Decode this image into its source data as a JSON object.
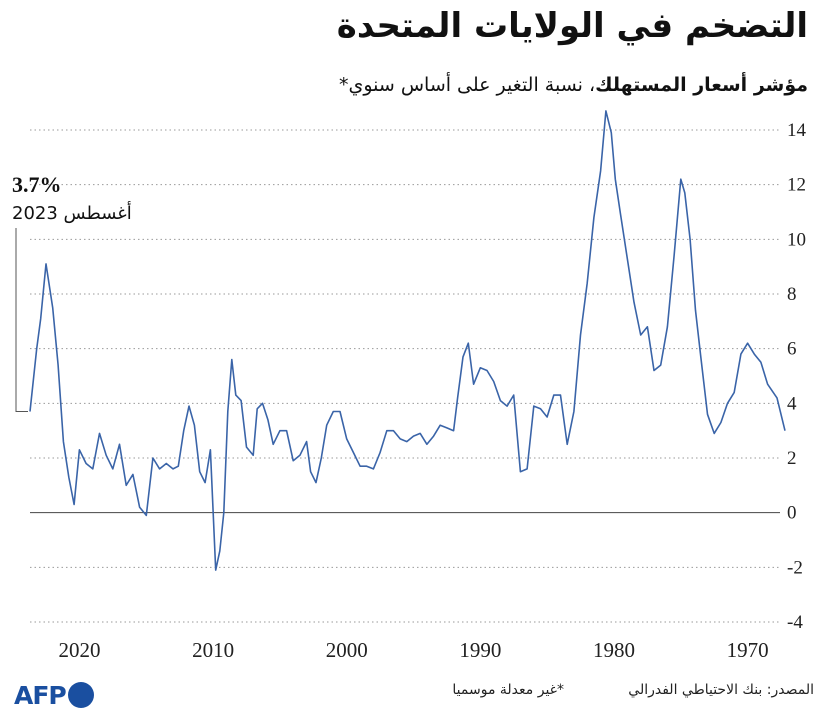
{
  "header": {
    "title": "التضخم في الولايات المتحدة",
    "subtitle_bold": "مؤشر أسعار المستهلك",
    "subtitle_rest": "، نسبة التغير على أساس سنوي*"
  },
  "annotation": {
    "value": "3.7%",
    "date": "أغسطس 2023"
  },
  "footer": {
    "source": "المصدر: بنك الاحتياطي الفدرالي",
    "note": "*غير معدلة موسميا",
    "logo": "AFP"
  },
  "colors": {
    "line": "#3a64a8",
    "grid": "#9a9a9a",
    "zero": "#444444",
    "logo": "#1a4fa0"
  },
  "chart_data": {
    "type": "line",
    "title": "التضخم في الولايات المتحدة",
    "x_axis": {
      "reversed": true,
      "xlim": [
        1967.2,
        2023.7
      ],
      "tick_labels": [
        "1970",
        "1980",
        "1990",
        "2000",
        "2010",
        "2020"
      ]
    },
    "y_axis": {
      "ylim": [
        -4,
        14
      ],
      "side": "right",
      "tick_labels": [
        "-4",
        "-2",
        "0",
        "2",
        "4",
        "6",
        "8",
        "10",
        "12",
        "14"
      ]
    },
    "grid": "horizontal-dotted",
    "series": [
      {
        "x": [
          1967.2,
          1967.8,
          1968.5,
          1969.0,
          1969.5,
          1970.0,
          1970.5,
          1971.0,
          1971.5,
          1972.0,
          1972.5,
          1973.0,
          1973.5,
          1973.9,
          1974.3,
          1974.7,
          1975.0,
          1975.5,
          1976.0,
          1976.5,
          1977.0,
          1977.5,
          1978.0,
          1978.5,
          1979.0,
          1979.5,
          1979.9,
          1980.2,
          1980.6,
          1981.0,
          1981.5,
          1982.0,
          1982.5,
          1983.0,
          1983.5,
          1984.0,
          1984.5,
          1985.0,
          1985.5,
          1986.0,
          1986.5,
          1987.0,
          1987.5,
          1988.0,
          1988.5,
          1989.0,
          1989.5,
          1990.0,
          1990.5,
          1990.9,
          1991.3,
          1991.7,
          1992.0,
          1992.5,
          1993.0,
          1993.5,
          1994.0,
          1994.5,
          1995.0,
          1995.5,
          1996.0,
          1996.5,
          1997.0,
          1997.5,
          1998.0,
          1998.5,
          1999.0,
          1999.5,
          2000.0,
          2000.5,
          2001.0,
          2001.5,
          2001.9,
          2002.3,
          2002.7,
          2003.0,
          2003.5,
          2004.0,
          2004.5,
          2005.0,
          2005.5,
          2005.9,
          2006.3,
          2006.7,
          2007.0,
          2007.5,
          2007.9,
          2008.3,
          2008.6,
          2008.9,
          2009.2,
          2009.5,
          2009.8,
          2010.2,
          2010.6,
          2011.0,
          2011.4,
          2011.8,
          2012.2,
          2012.6,
          2013.0,
          2013.5,
          2014.0,
          2014.5,
          2015.0,
          2015.5,
          2016.0,
          2016.5,
          2017.0,
          2017.5,
          2018.0,
          2018.5,
          2019.0,
          2019.5,
          2020.0,
          2020.4,
          2020.8,
          2021.2,
          2021.6,
          2022.0,
          2022.5,
          2022.9,
          2023.2,
          2023.7
        ],
        "y": [
          3.0,
          4.2,
          4.7,
          5.5,
          5.8,
          6.2,
          5.8,
          4.4,
          4.0,
          3.3,
          2.9,
          3.6,
          5.7,
          7.4,
          10.0,
          11.7,
          12.2,
          9.4,
          6.8,
          5.4,
          5.2,
          6.8,
          6.5,
          7.7,
          9.3,
          10.9,
          12.2,
          13.9,
          14.7,
          12.5,
          10.8,
          8.4,
          6.5,
          3.7,
          2.5,
          4.3,
          4.3,
          3.5,
          3.8,
          3.9,
          1.6,
          1.5,
          4.3,
          3.9,
          4.1,
          4.8,
          5.2,
          5.3,
          4.7,
          6.2,
          5.7,
          4.2,
          3.0,
          3.1,
          3.2,
          2.8,
          2.5,
          2.9,
          2.8,
          2.6,
          2.7,
          3.0,
          3.0,
          2.2,
          1.6,
          1.7,
          1.7,
          2.2,
          2.7,
          3.7,
          3.7,
          3.2,
          2.0,
          1.1,
          1.5,
          2.6,
          2.1,
          1.9,
          3.0,
          3.0,
          2.5,
          3.4,
          4.0,
          3.8,
          2.1,
          2.4,
          4.1,
          4.3,
          5.6,
          3.7,
          0.0,
          -1.4,
          -2.1,
          2.3,
          1.1,
          1.5,
          3.2,
          3.9,
          3.0,
          1.7,
          1.6,
          1.8,
          1.6,
          2.0,
          -0.1,
          0.2,
          1.4,
          1.0,
          2.5,
          1.6,
          2.1,
          2.9,
          1.6,
          1.8,
          2.3,
          0.3,
          1.3,
          2.6,
          5.4,
          7.5,
          9.1,
          7.1,
          6.0,
          3.7
        ]
      }
    ]
  }
}
